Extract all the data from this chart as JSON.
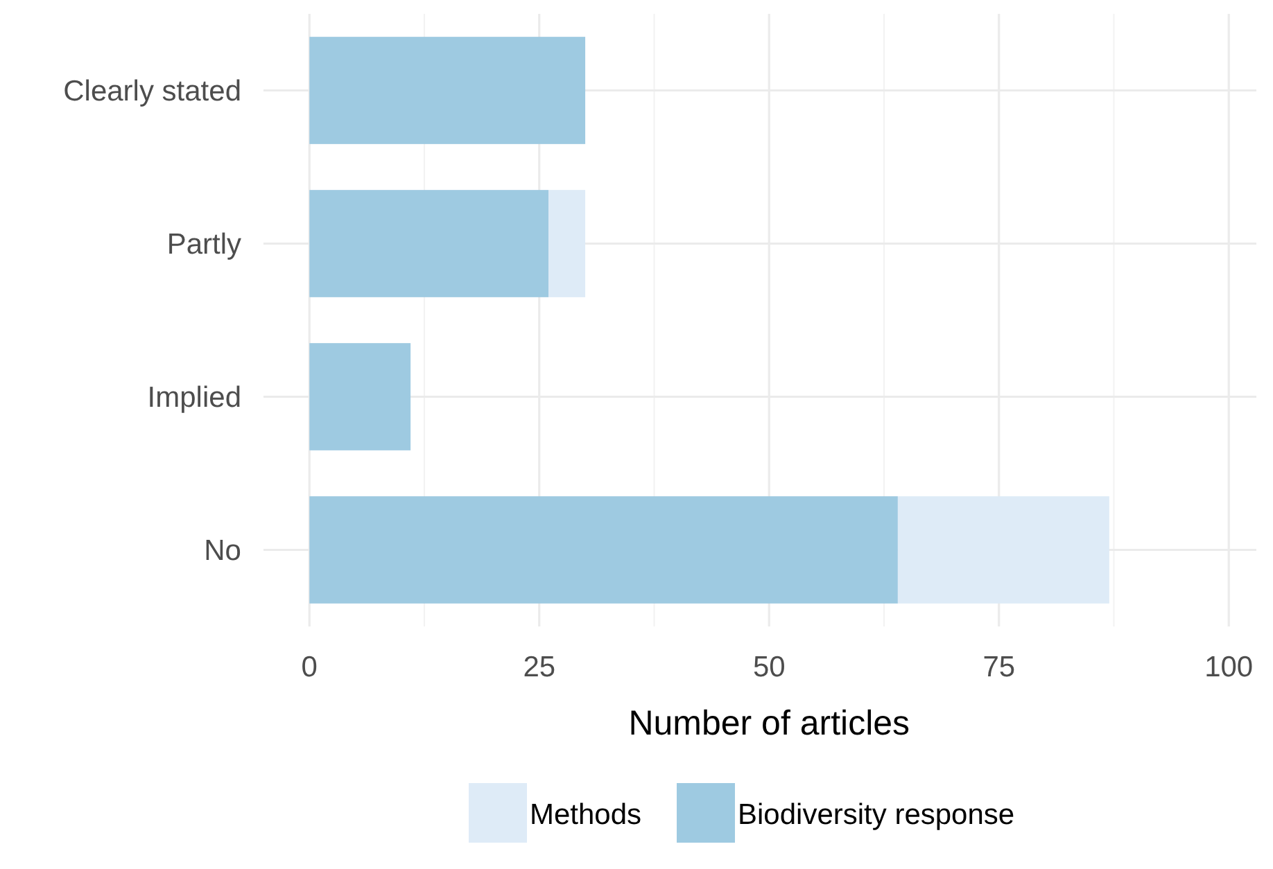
{
  "chart_data": {
    "type": "bar",
    "orientation": "horizontal",
    "stacked": true,
    "xlabel": "Number of articles",
    "categories": [
      "Clearly stated",
      "Partly",
      "Implied",
      "No"
    ],
    "series": [
      {
        "name": "Biodiversity response",
        "color": "#9ecae1",
        "values": [
          30,
          26,
          11,
          64
        ]
      },
      {
        "name": "Methods",
        "color": "#deebf7",
        "values": [
          0,
          4,
          0,
          23
        ]
      }
    ],
    "xlim": [
      -5,
      103
    ],
    "xticks": [
      0,
      25,
      50,
      75,
      100
    ],
    "grid": true,
    "legend": "bottom"
  }
}
